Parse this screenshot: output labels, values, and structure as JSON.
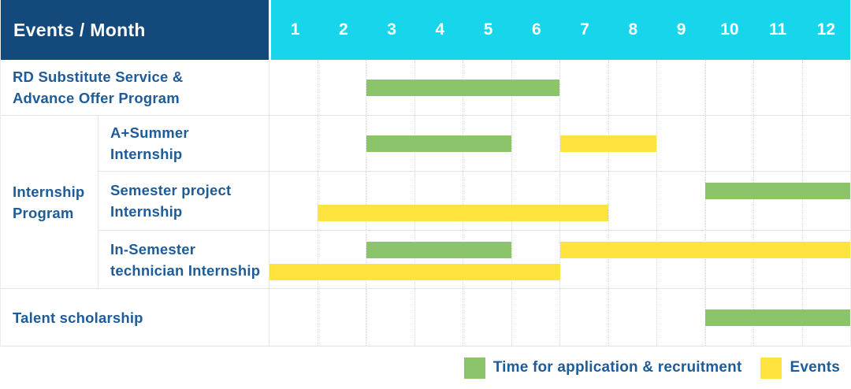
{
  "header": {
    "events_month_label": "Events / Month",
    "months": [
      "1",
      "2",
      "3",
      "4",
      "5",
      "6",
      "7",
      "8",
      "9",
      "10",
      "11",
      "12"
    ]
  },
  "group_label": "Internship\nProgram",
  "colors": {
    "header_navy": "#14497B",
    "header_cyan": "#17D6EC",
    "application_green": "#8BC46A",
    "event_yellow": "#FFE33F",
    "label_blue": "#1E5C99"
  },
  "chart_data": {
    "type": "gantt",
    "title": "Events / Month",
    "x_unit": "month",
    "x_range": [
      1,
      12
    ],
    "grid": true,
    "legend_position": "bottom-right",
    "legend": [
      {
        "key": "application",
        "label": "Time for application & recruitment",
        "color": "#8BC46A"
      },
      {
        "key": "event",
        "label": "Events",
        "color": "#FFE33F"
      }
    ],
    "rows": [
      {
        "label": "RD Substitute Service &\nAdvance Offer Program",
        "group": null,
        "tracks": 1,
        "bars": [
          {
            "type": "application",
            "start_month": 3,
            "end_month": 6,
            "track": 0
          }
        ]
      },
      {
        "label": "A+Summer\nInternship",
        "group": "Internship Program",
        "tracks": 1,
        "bars": [
          {
            "type": "application",
            "start_month": 3,
            "end_month": 5,
            "track": 0
          },
          {
            "type": "event",
            "start_month": 7,
            "end_month": 8,
            "track": 0
          }
        ]
      },
      {
        "label": "Semester project\nInternship",
        "group": "Internship Program",
        "tracks": 2,
        "bars": [
          {
            "type": "application",
            "start_month": 10,
            "end_month": 12,
            "track": 0
          },
          {
            "type": "event",
            "start_month": 2,
            "end_month": 7,
            "track": 1
          }
        ]
      },
      {
        "label": "In-Semester\ntechnician Internship",
        "group": "Internship Program",
        "tracks": 2,
        "bars": [
          {
            "type": "application",
            "start_month": 3,
            "end_month": 5,
            "track": 0
          },
          {
            "type": "event",
            "start_month": 7,
            "end_month": 12,
            "track": 0
          },
          {
            "type": "event",
            "start_month": 1,
            "end_month": 6,
            "track": 1
          }
        ]
      },
      {
        "label": "Talent scholarship",
        "group": null,
        "tracks": 1,
        "bars": [
          {
            "type": "application",
            "start_month": 10,
            "end_month": 12,
            "track": 0
          }
        ]
      }
    ]
  },
  "legend": {
    "application_label": "Time for application & recruitment",
    "events_label": "Events"
  }
}
